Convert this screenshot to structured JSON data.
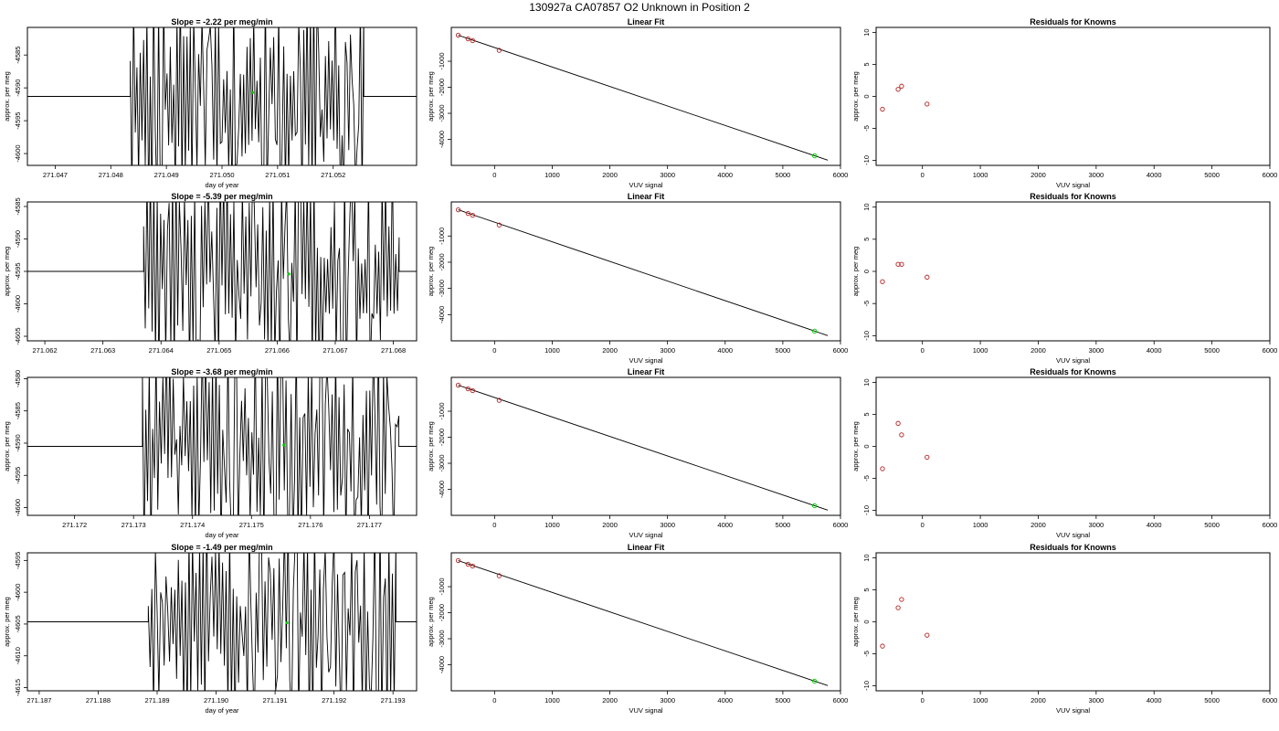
{
  "figure": {
    "title": "130927a     CA07857   O2 Unknown in Position  2"
  },
  "colors": {
    "line": "#000000",
    "known": "#b22222",
    "unknown": "#00cc00",
    "fit": "#000000"
  },
  "chart_data": [
    {
      "type": "line",
      "title": "Slope =  -2.22  per meg/min",
      "xlabel": "day of year",
      "ylabel": "approx. per meg",
      "xlim": [
        271.0465,
        271.0535
      ],
      "ylim": [
        -4601.8,
        -4580.8
      ],
      "xticks": [
        "271.047",
        "271.048",
        "271.049",
        "271.050",
        "271.051",
        "271.052"
      ],
      "yticks": [
        "-4585",
        "-4590",
        "-4595",
        "-4600"
      ],
      "unknown_point": {
        "x": 271.05055,
        "y": -4590.7
      },
      "trace": {
        "x_start": 271.04835,
        "x_end": 271.05255,
        "y_min": -4601.8,
        "y_max": -4580.8,
        "n": 140,
        "seed": 11
      }
    },
    {
      "type": "scatter",
      "title": "Linear Fit",
      "xlabel": "VUV signal",
      "ylabel": "approx. per meg",
      "xlim": [
        -750,
        6000
      ],
      "ylim": [
        -5000,
        300
      ],
      "xticks": [
        "0",
        "1000",
        "2000",
        "3000",
        "4000",
        "5000",
        "6000"
      ],
      "yticks": [
        "-1000",
        "-2000",
        "-3000",
        "-4000"
      ],
      "fit": {
        "x": [
          -630,
          5780
        ],
        "y": [
          0,
          -4800
        ]
      },
      "knowns": {
        "x": [
          -630,
          -460,
          -380,
          80
        ],
        "y": [
          0,
          -140,
          -210,
          -580
        ]
      },
      "unknown": {
        "x": 5550,
        "y": -4630
      }
    },
    {
      "type": "scatter",
      "title": "Residuals for Knowns",
      "xlabel": "VUV signal",
      "ylabel": "approx. per meg",
      "xlim": [
        -800,
        6000
      ],
      "ylim": [
        -10.8,
        10.8
      ],
      "xticks": [
        "0",
        "1000",
        "2000",
        "3000",
        "4000",
        "5000",
        "6000"
      ],
      "yticks": [
        "10",
        "5",
        "0",
        "-5",
        "-10"
      ],
      "points": {
        "x": [
          -690,
          -420,
          -360,
          80
        ],
        "y": [
          -2.0,
          1.1,
          1.6,
          -1.2
        ]
      }
    },
    {
      "type": "line",
      "title": "Slope =  -5.39  per meg/min",
      "xlabel": "",
      "ylabel": "approx. per meg",
      "xlim": [
        271.0617,
        271.0684
      ],
      "ylim": [
        -4605.7,
        -4584.3
      ],
      "xticks": [
        "271.062",
        "271.063",
        "271.064",
        "271.065",
        "271.066",
        "271.067",
        "271.068"
      ],
      "yticks": [
        "-4585",
        "-4590",
        "-4595",
        "-4600",
        "-4605"
      ],
      "unknown_point": {
        "x": 271.0662,
        "y": -4595.4
      },
      "trace": {
        "x_start": 271.0637,
        "x_end": 271.0681,
        "y_min": -4605.7,
        "y_max": -4584.3,
        "n": 150,
        "seed": 23
      }
    },
    {
      "type": "scatter",
      "title": "Linear Fit",
      "xlabel": "VUV signal",
      "ylabel": "approx. per meg",
      "xlim": [
        -750,
        6000
      ],
      "ylim": [
        -5000,
        300
      ],
      "xticks": [
        "0",
        "1000",
        "2000",
        "3000",
        "4000",
        "5000",
        "6000"
      ],
      "yticks": [
        "-1000",
        "-2000",
        "-3000",
        "-4000"
      ],
      "fit": {
        "x": [
          -630,
          5780
        ],
        "y": [
          0,
          -4800
        ]
      },
      "knowns": {
        "x": [
          -630,
          -460,
          -380,
          80
        ],
        "y": [
          0,
          -140,
          -210,
          -580
        ]
      },
      "unknown": {
        "x": 5550,
        "y": -4630
      }
    },
    {
      "type": "scatter",
      "title": "Residuals for Knowns",
      "xlabel": "VUV signal",
      "ylabel": "approx. per meg",
      "xlim": [
        -800,
        6000
      ],
      "ylim": [
        -10.8,
        10.8
      ],
      "xticks": [
        "0",
        "1000",
        "2000",
        "3000",
        "4000",
        "5000",
        "6000"
      ],
      "yticks": [
        "10",
        "5",
        "0",
        "-5",
        "-10"
      ],
      "points": {
        "x": [
          -690,
          -420,
          -360,
          80
        ],
        "y": [
          -1.6,
          1.1,
          1.1,
          -0.9
        ]
      }
    },
    {
      "type": "line",
      "title": "Slope =  -3.68  per meg/min",
      "xlabel": "day of year",
      "ylabel": "approx. per meg",
      "xlim": [
        271.1712,
        271.1778
      ],
      "ylim": [
        -4601.2,
        -4579.8
      ],
      "xticks": [
        "271.172",
        "271.173",
        "271.174",
        "271.175",
        "271.176",
        "271.177"
      ],
      "yticks": [
        "-4580",
        "-4585",
        "-4590",
        "-4595",
        "-4600"
      ],
      "unknown_point": {
        "x": 271.17555,
        "y": -4590.3
      },
      "trace": {
        "x_start": 271.17315,
        "x_end": 271.1775,
        "y_min": -4601.2,
        "y_max": -4579.8,
        "n": 150,
        "seed": 37
      }
    },
    {
      "type": "scatter",
      "title": "Linear Fit",
      "xlabel": "VUV signal",
      "ylabel": "approx. per meg",
      "xlim": [
        -750,
        6000
      ],
      "ylim": [
        -5000,
        300
      ],
      "xticks": [
        "0",
        "1000",
        "2000",
        "3000",
        "4000",
        "5000",
        "6000"
      ],
      "yticks": [
        "-1000",
        "-2000",
        "-3000",
        "-4000"
      ],
      "fit": {
        "x": [
          -630,
          5780
        ],
        "y": [
          0,
          -4800
        ]
      },
      "knowns": {
        "x": [
          -630,
          -460,
          -380,
          80
        ],
        "y": [
          0,
          -140,
          -210,
          -580
        ]
      },
      "unknown": {
        "x": 5550,
        "y": -4630
      }
    },
    {
      "type": "scatter",
      "title": "Residuals for Knowns",
      "xlabel": "VUV signal",
      "ylabel": "approx. per meg",
      "xlim": [
        -800,
        6000
      ],
      "ylim": [
        -10.8,
        10.8
      ],
      "xticks": [
        "0",
        "1000",
        "2000",
        "3000",
        "4000",
        "5000",
        "6000"
      ],
      "yticks": [
        "10",
        "5",
        "0",
        "-5",
        "-10"
      ],
      "points": {
        "x": [
          -690,
          -420,
          -360,
          80
        ],
        "y": [
          -3.5,
          3.6,
          1.8,
          -1.7
        ]
      }
    },
    {
      "type": "line",
      "title": "Slope =  -1.49  per meg/min",
      "xlabel": "day of year",
      "ylabel": "approx. per meg",
      "xlim": [
        271.1868,
        271.1934
      ],
      "ylim": [
        -4615.5,
        -4593.8
      ],
      "xticks": [
        "271.187",
        "271.188",
        "271.189",
        "271.190",
        "271.191",
        "271.192",
        "271.193"
      ],
      "yticks": [
        "-4595",
        "-4600",
        "-4605",
        "-4610",
        "-4615"
      ],
      "unknown_point": {
        "x": 271.1912,
        "y": -4604.8
      },
      "trace": {
        "x_start": 271.18885,
        "x_end": 271.19305,
        "y_min": -4615.5,
        "y_max": -4593.8,
        "n": 140,
        "seed": 53
      }
    },
    {
      "type": "scatter",
      "title": "Linear Fit",
      "xlabel": "VUV signal",
      "ylabel": "approx. per meg",
      "xlim": [
        -750,
        6000
      ],
      "ylim": [
        -5000,
        300
      ],
      "xticks": [
        "0",
        "1000",
        "2000",
        "3000",
        "4000",
        "5000",
        "6000"
      ],
      "yticks": [
        "-1000",
        "-2000",
        "-3000",
        "-4000"
      ],
      "fit": {
        "x": [
          -630,
          5780
        ],
        "y": [
          0,
          -4800
        ]
      },
      "knowns": {
        "x": [
          -630,
          -460,
          -380,
          80
        ],
        "y": [
          0,
          -140,
          -210,
          -580
        ]
      },
      "unknown": {
        "x": 5550,
        "y": -4630
      }
    },
    {
      "type": "scatter",
      "title": "Residuals for Knowns",
      "xlabel": "VUV signal",
      "ylabel": "approx. per meg",
      "xlim": [
        -800,
        6000
      ],
      "ylim": [
        -10.8,
        10.8
      ],
      "xticks": [
        "0",
        "1000",
        "2000",
        "3000",
        "4000",
        "5000",
        "6000"
      ],
      "yticks": [
        "10",
        "5",
        "0",
        "-5",
        "-10"
      ],
      "points": {
        "x": [
          -690,
          -420,
          -360,
          80
        ],
        "y": [
          -3.8,
          2.2,
          3.5,
          -2.1
        ]
      }
    }
  ]
}
